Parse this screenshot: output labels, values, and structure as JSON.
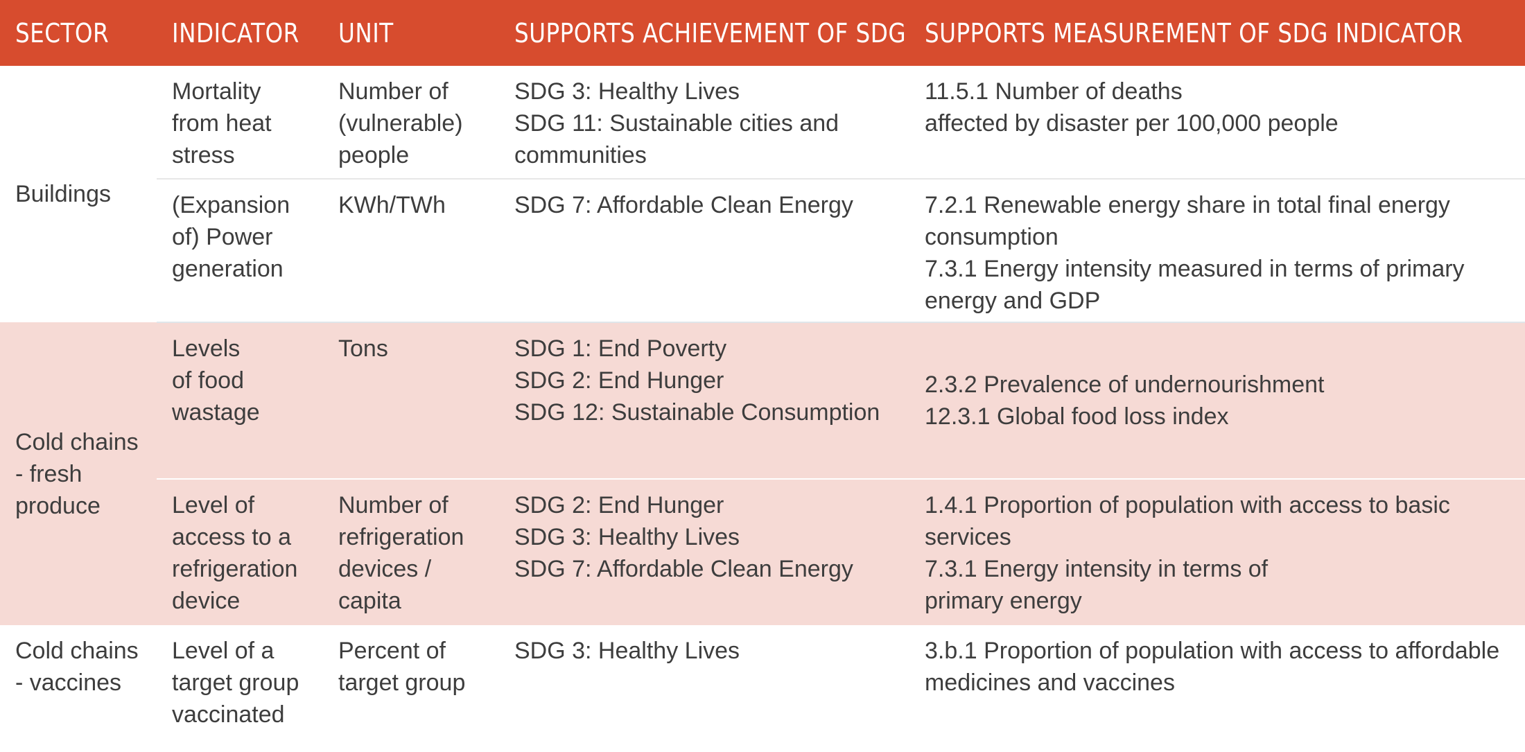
{
  "headers": {
    "sector": "SECTOR",
    "indicator": "INDICATOR",
    "unit": "UNIT",
    "achievement": "SUPPORTS ACHIEVEMENT OF SDG",
    "measurement": "SUPPORTS MEASUREMENT OF SDG INDICATOR"
  },
  "sectors": {
    "buildings": "Buildings",
    "cold_fresh": [
      "Cold chains",
      "- fresh",
      "produce"
    ],
    "cold_vaccines": [
      "Cold chains",
      "- vaccines"
    ]
  },
  "rows": [
    {
      "indicator": [
        "Mortality",
        "from heat",
        "stress"
      ],
      "unit": [
        "Number of",
        "(vulnerable)",
        "people"
      ],
      "achievement": [
        "SDG 3: Healthy Lives",
        "SDG 11: Sustainable cities and",
        "communities"
      ],
      "measurement": [
        "11.5.1 Number of deaths",
        "affected by disaster per 100,000 people"
      ]
    },
    {
      "indicator": [
        "(Expansion",
        "of) Power",
        "generation"
      ],
      "unit": [
        "KWh/TWh"
      ],
      "achievement": [
        "SDG 7: Affordable Clean Energy"
      ],
      "measurement": [
        "7.2.1 Renewable energy share in total final energy",
        "consumption",
        "7.3.1 Energy intensity measured in terms of primary",
        "energy and GDP"
      ]
    },
    {
      "indicator": [
        "Levels",
        "of food",
        "wastage"
      ],
      "unit": [
        "Tons"
      ],
      "achievement": [
        "SDG 1: End Poverty",
        "SDG 2: End Hunger",
        "SDG 12: Sustainable Consumption"
      ],
      "measurement": [
        "2.3.2 Prevalence of undernourishment",
        "12.3.1 Global food loss index"
      ]
    },
    {
      "indicator": [
        "Level of",
        "access to a",
        "refrigeration",
        "device"
      ],
      "unit": [
        "Number of",
        "refrigeration",
        "devices /",
        "capita"
      ],
      "achievement": [
        "SDG 2: End Hunger",
        "SDG 3: Healthy Lives",
        "SDG 7: Affordable Clean Energy"
      ],
      "measurement": [
        "1.4.1 Proportion of population with access to basic",
        "services",
        "7.3.1 Energy intensity in terms of",
        "primary energy"
      ]
    },
    {
      "indicator": [
        "Level of a",
        "target group",
        "vaccinated"
      ],
      "unit": [
        "Percent of",
        "target group"
      ],
      "achievement": [
        "SDG 3: Healthy Lives"
      ],
      "measurement": [
        "3.b.1 Proportion of population with access to affordable",
        "medicines and vaccines"
      ]
    }
  ],
  "colors": {
    "header_bg": "#d74c2e",
    "header_text": "#ffffff",
    "pink_band": "#f6dad5",
    "body_text": "#3d3d3d"
  }
}
